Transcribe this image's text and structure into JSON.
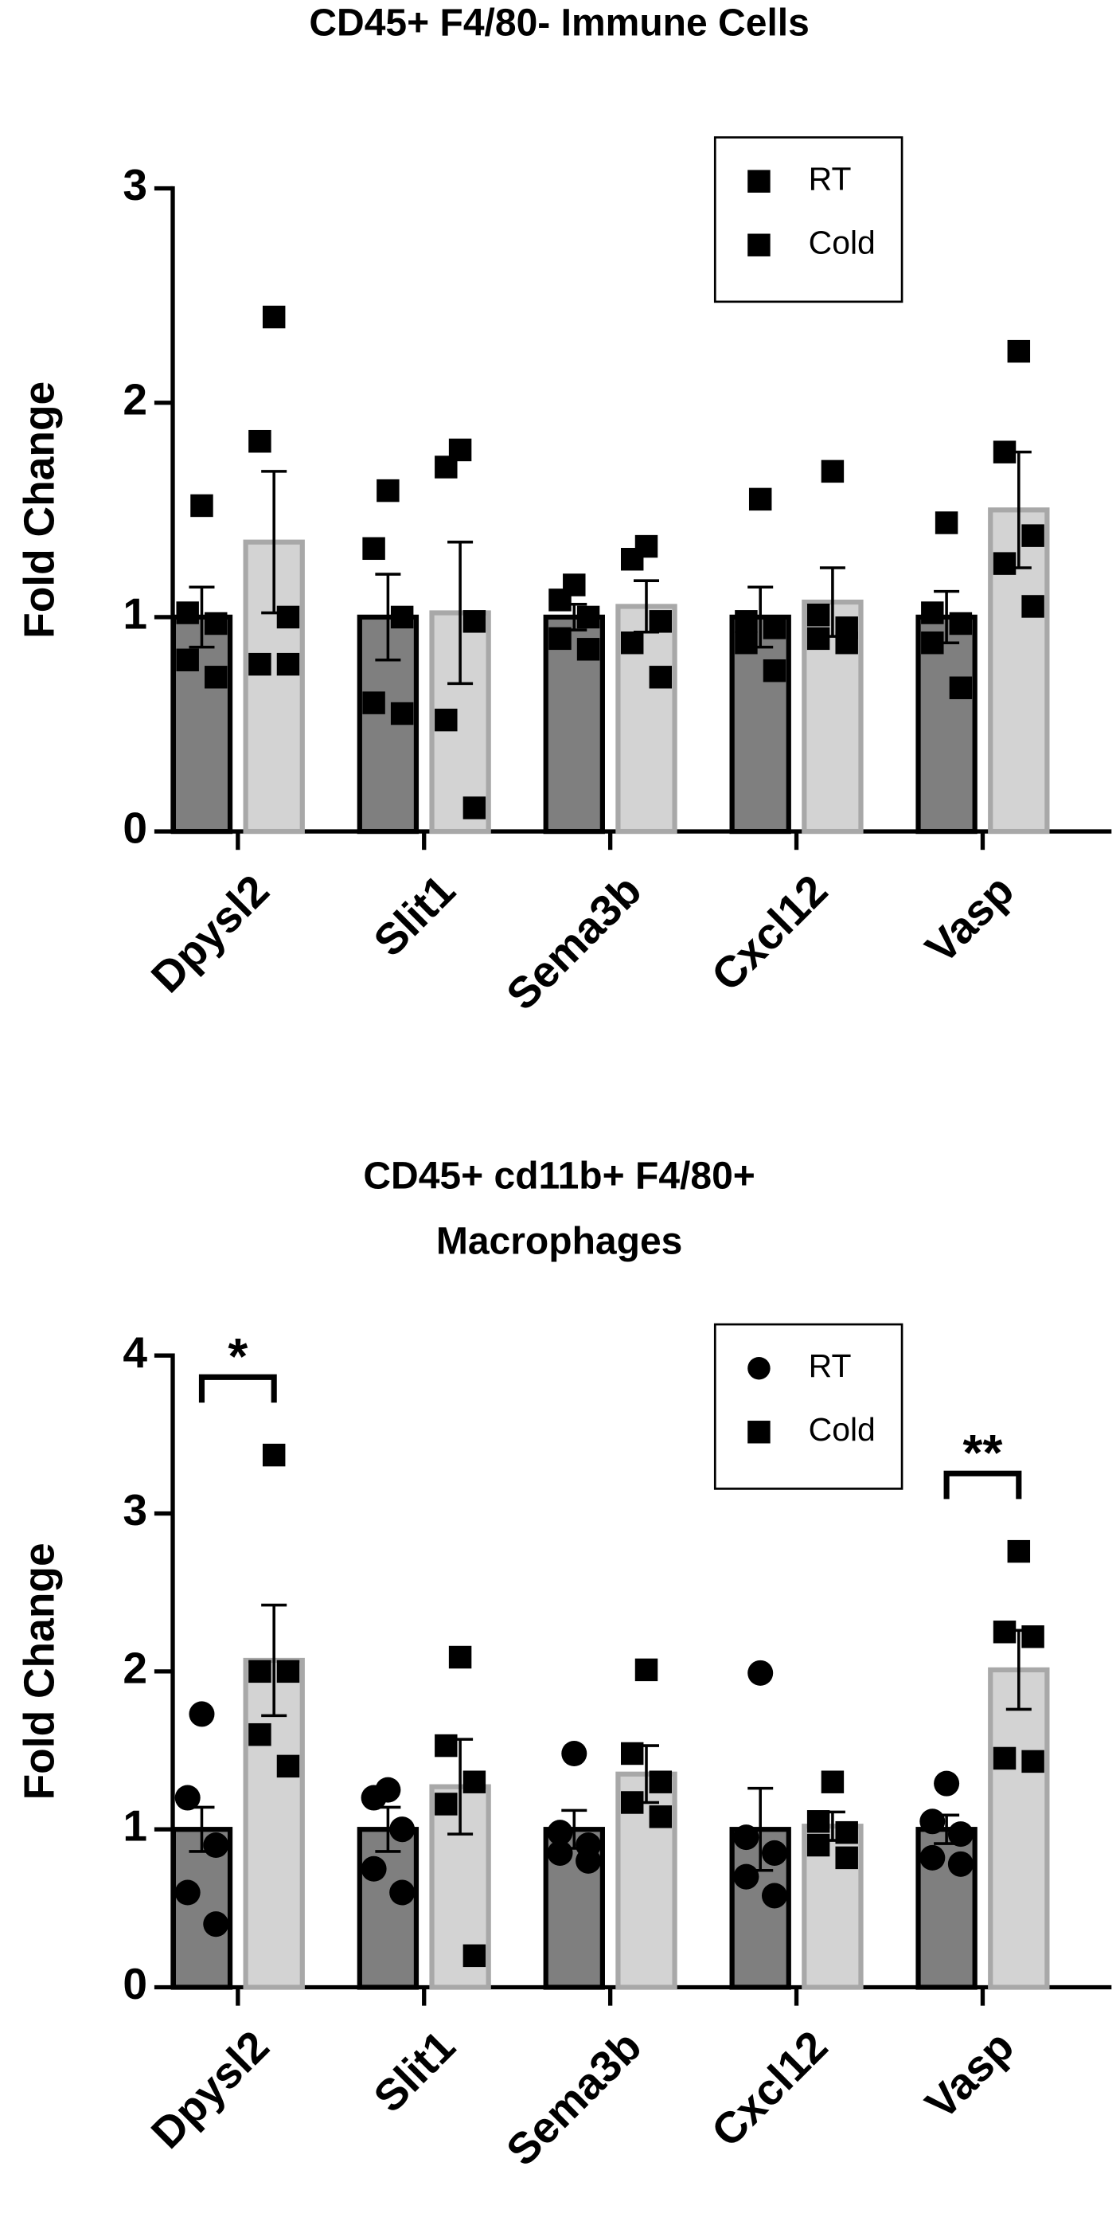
{
  "chart_data": [
    {
      "type": "bar",
      "title": "CD45+ F4/80- Immune Cells",
      "ylabel": "Fold Change",
      "categories": [
        "Dpysl2",
        "Slit1",
        "Sema3b",
        "Cxcl12",
        "Vasp"
      ],
      "series": [
        {
          "name": "RT",
          "color": "#7f7f7f",
          "edgecolor": "#000000",
          "marker": "square-no",
          "values": [
            1.0,
            1.0,
            1.0,
            1.0,
            1.0
          ],
          "errors": [
            0.14,
            0.2,
            0.06,
            0.14,
            0.12
          ],
          "points": [
            [
              1.52,
              1.02,
              0.97,
              0.8,
              0.72
            ],
            [
              1.59,
              1.32,
              1.0,
              0.6,
              0.55
            ],
            [
              1.15,
              1.08,
              1.0,
              0.9,
              0.85
            ],
            [
              1.55,
              0.98,
              0.95,
              0.88,
              0.75
            ],
            [
              1.44,
              1.02,
              0.97,
              0.88,
              0.67
            ]
          ]
        },
        {
          "name": "Cold",
          "color": "#d3d3d3",
          "edgecolor": "#a8a8a8",
          "marker": "square",
          "values": [
            1.35,
            1.02,
            1.05,
            1.07,
            1.5
          ],
          "errors": [
            0.33,
            0.33,
            0.12,
            0.16,
            0.27
          ],
          "points": [
            [
              2.4,
              1.82,
              1.0,
              0.78,
              0.78
            ],
            [
              1.78,
              1.7,
              0.98,
              0.52,
              0.11
            ],
            [
              1.33,
              1.27,
              0.98,
              0.88,
              0.72
            ],
            [
              1.68,
              1.01,
              0.95,
              0.9,
              0.88
            ],
            [
              2.24,
              1.77,
              1.38,
              1.25,
              1.05
            ]
          ]
        }
      ],
      "ylim": [
        0,
        3
      ],
      "yticks": [
        0,
        1,
        2,
        3
      ],
      "legend": "upper right",
      "annotations": []
    },
    {
      "type": "bar",
      "title": [
        "CD45+ cd11b+ F4/80+",
        "Macrophages"
      ],
      "ylabel": "Fold Change",
      "categories": [
        "Dpysl2",
        "Slit1",
        "Sema3b",
        "Cxcl12",
        "Vasp"
      ],
      "series": [
        {
          "name": "RT",
          "color": "#7f7f7f",
          "edgecolor": "#000000",
          "marker": "circle",
          "values": [
            1.0,
            1.0,
            1.0,
            1.0,
            1.0
          ],
          "errors": [
            0.14,
            0.14,
            0.12,
            0.26,
            0.09
          ],
          "points": [
            [
              1.73,
              1.2,
              0.9,
              0.6,
              0.4
            ],
            [
              1.25,
              1.2,
              1.0,
              0.75,
              0.6
            ],
            [
              1.48,
              0.98,
              0.9,
              0.85,
              0.8
            ],
            [
              1.99,
              0.95,
              0.85,
              0.7,
              0.58
            ],
            [
              1.29,
              1.05,
              0.97,
              0.82,
              0.78
            ]
          ]
        },
        {
          "name": "Cold",
          "color": "#d3d3d3",
          "edgecolor": "#a8a8a8",
          "marker": "square",
          "values": [
            2.07,
            1.27,
            1.35,
            1.02,
            2.01
          ],
          "errors": [
            0.35,
            0.3,
            0.18,
            0.09,
            0.25
          ],
          "points": [
            [
              3.37,
              2.0,
              2.0,
              1.6,
              1.4
            ],
            [
              2.09,
              1.53,
              1.3,
              1.16,
              0.2
            ],
            [
              2.01,
              1.48,
              1.3,
              1.17,
              1.08
            ],
            [
              1.3,
              1.05,
              0.98,
              0.9,
              0.82
            ],
            [
              2.76,
              2.25,
              2.22,
              1.45,
              1.43
            ]
          ]
        }
      ],
      "ylim": [
        0,
        4
      ],
      "yticks": [
        0,
        1,
        2,
        3,
        4
      ],
      "legend": "upper right",
      "annotations": [
        {
          "text": "*",
          "category": "Dpysl2"
        },
        {
          "text": "**",
          "category": "Vasp"
        }
      ]
    }
  ]
}
